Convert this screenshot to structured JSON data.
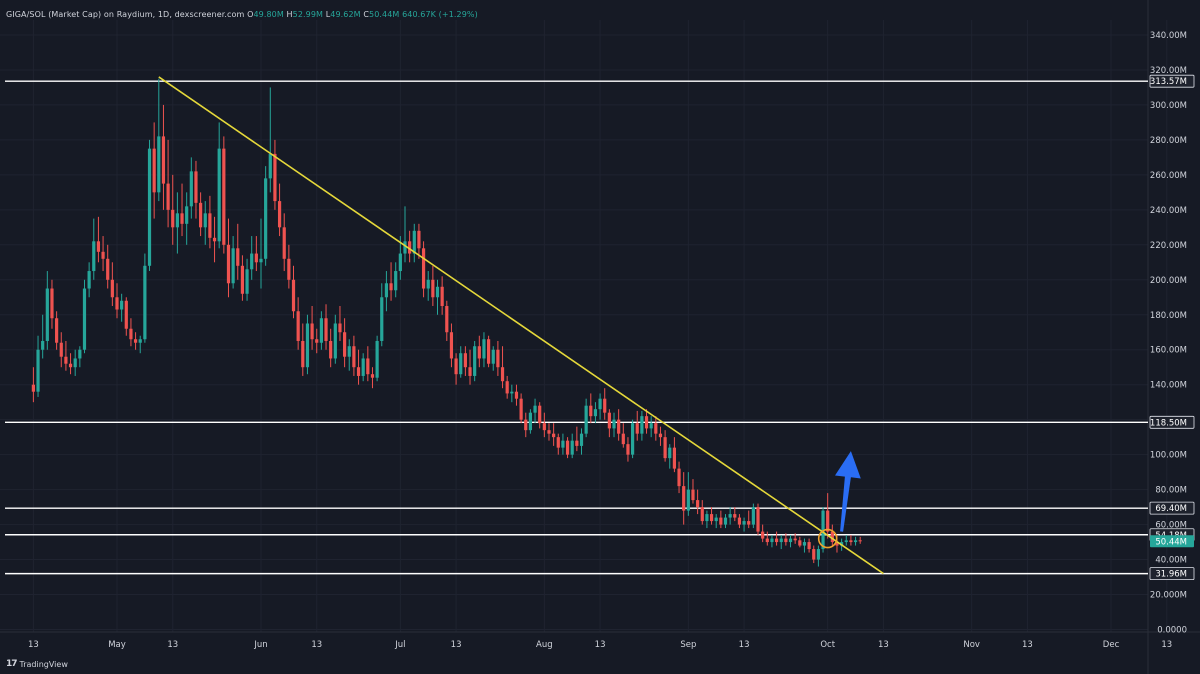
{
  "header": {
    "symbol": "GIGA/SOL (Market Cap) on Raydium, 1D, dexscreener.com",
    "open_label": "O",
    "open": "49.80M",
    "high_label": "H",
    "high": "52.99M",
    "low_label": "L",
    "low": "49.62M",
    "close_label": "C",
    "close": "50.44M",
    "change": "640.67K (+1.29%)"
  },
  "branding": {
    "name": "TradingView",
    "mark": "17"
  },
  "colors": {
    "background": "#161a25",
    "grid": "#1f2330",
    "up": "#26a69a",
    "down": "#ef5350",
    "trendline": "#e5d83a",
    "level_line": "#ffffff",
    "arrow": "#2a6df4",
    "circle": "#f0a22c",
    "axis_text": "#d1d4dc"
  },
  "chart_data": {
    "type": "candlestick",
    "title": "",
    "ylabel": "",
    "ylim": [
      0,
      350
    ],
    "y_unit": "M",
    "y_ticks": [
      "0.0000",
      "20.000M",
      "40.00M",
      "60.00M",
      "80.00M",
      "100.00M",
      "120.00M",
      "140.00M",
      "160.00M",
      "180.00M",
      "200.00M",
      "220.00M",
      "240.00M",
      "260.00M",
      "280.00M",
      "300.00M",
      "320.00M",
      "340.00M"
    ],
    "y_tick_values": [
      0,
      20,
      40,
      60,
      80,
      100,
      120,
      140,
      160,
      180,
      200,
      220,
      240,
      260,
      280,
      300,
      320,
      340
    ],
    "x_labels": [
      "13",
      "May",
      "13",
      "Jun",
      "13",
      "Jul",
      "13",
      "Aug",
      "13",
      "Sep",
      "13",
      "Oct",
      "13",
      "Nov",
      "13",
      "Dec",
      "13"
    ],
    "x_label_days": [
      -18,
      0,
      12,
      31,
      43,
      61,
      73,
      92,
      104,
      123,
      135,
      153,
      165,
      184,
      196,
      214,
      226
    ],
    "x_axis_origin": "May 1",
    "candles": [
      [
        -18,
        140,
        150,
        130,
        136
      ],
      [
        -17,
        136,
        168,
        133,
        160
      ],
      [
        -16,
        160,
        180,
        155,
        165
      ],
      [
        -15,
        165,
        205,
        160,
        195
      ],
      [
        -14,
        195,
        200,
        172,
        178
      ],
      [
        -13,
        178,
        182,
        160,
        164
      ],
      [
        -12,
        164,
        170,
        150,
        156
      ],
      [
        -11,
        156,
        165,
        148,
        152
      ],
      [
        -10,
        152,
        158,
        146,
        150
      ],
      [
        -9,
        150,
        160,
        145,
        155
      ],
      [
        -8,
        155,
        162,
        150,
        160
      ],
      [
        -7,
        160,
        200,
        158,
        195
      ],
      [
        -6,
        195,
        210,
        190,
        205
      ],
      [
        -5,
        205,
        235,
        200,
        222
      ],
      [
        -4,
        222,
        236,
        210,
        216
      ],
      [
        -3,
        216,
        225,
        205,
        212
      ],
      [
        -2,
        212,
        220,
        195,
        200
      ],
      [
        -1,
        200,
        210,
        185,
        190
      ],
      [
        0,
        190,
        198,
        178,
        183
      ],
      [
        1,
        183,
        192,
        176,
        188
      ],
      [
        2,
        188,
        190,
        168,
        172
      ],
      [
        3,
        172,
        178,
        162,
        166
      ],
      [
        4,
        166,
        170,
        160,
        164
      ],
      [
        5,
        164,
        168,
        158,
        166
      ],
      [
        6,
        166,
        215,
        164,
        208
      ],
      [
        7,
        208,
        280,
        205,
        275
      ],
      [
        8,
        275,
        290,
        235,
        250
      ],
      [
        9,
        250,
        315,
        245,
        282
      ],
      [
        10,
        282,
        300,
        240,
        255
      ],
      [
        11,
        255,
        280,
        230,
        240
      ],
      [
        12,
        240,
        260,
        220,
        230
      ],
      [
        13,
        230,
        250,
        215,
        238
      ],
      [
        14,
        238,
        255,
        225,
        232
      ],
      [
        15,
        232,
        250,
        220,
        242
      ],
      [
        16,
        242,
        270,
        235,
        262
      ],
      [
        17,
        262,
        268,
        235,
        244
      ],
      [
        18,
        244,
        250,
        225,
        230
      ],
      [
        19,
        230,
        245,
        220,
        238
      ],
      [
        20,
        238,
        248,
        218,
        224
      ],
      [
        21,
        224,
        236,
        210,
        222
      ],
      [
        22,
        222,
        290,
        218,
        275
      ],
      [
        23,
        275,
        282,
        215,
        220
      ],
      [
        24,
        220,
        235,
        190,
        198
      ],
      [
        25,
        198,
        225,
        195,
        218
      ],
      [
        26,
        218,
        232,
        200,
        208
      ],
      [
        27,
        208,
        214,
        188,
        192
      ],
      [
        28,
        192,
        212,
        188,
        206
      ],
      [
        29,
        206,
        225,
        200,
        215
      ],
      [
        30,
        215,
        225,
        205,
        210
      ],
      [
        31,
        210,
        235,
        195,
        212
      ],
      [
        32,
        212,
        265,
        208,
        258
      ],
      [
        33,
        258,
        310,
        250,
        272
      ],
      [
        34,
        272,
        280,
        240,
        245
      ],
      [
        35,
        245,
        255,
        225,
        230
      ],
      [
        36,
        230,
        238,
        205,
        212
      ],
      [
        37,
        212,
        220,
        195,
        200
      ],
      [
        38,
        200,
        208,
        178,
        182
      ],
      [
        39,
        182,
        190,
        160,
        165
      ],
      [
        40,
        165,
        175,
        145,
        150
      ],
      [
        41,
        150,
        180,
        146,
        175
      ],
      [
        42,
        175,
        185,
        160,
        166
      ],
      [
        43,
        166,
        172,
        158,
        164
      ],
      [
        44,
        164,
        182,
        160,
        178
      ],
      [
        45,
        178,
        186,
        160,
        165
      ],
      [
        46,
        165,
        172,
        150,
        155
      ],
      [
        47,
        155,
        180,
        152,
        175
      ],
      [
        48,
        175,
        185,
        165,
        170
      ],
      [
        49,
        170,
        178,
        150,
        156
      ],
      [
        50,
        156,
        166,
        148,
        162
      ],
      [
        51,
        162,
        168,
        145,
        150
      ],
      [
        52,
        150,
        160,
        140,
        145
      ],
      [
        53,
        145,
        158,
        142,
        155
      ],
      [
        54,
        155,
        162,
        142,
        146
      ],
      [
        55,
        146,
        150,
        138,
        144
      ],
      [
        56,
        144,
        168,
        142,
        165
      ],
      [
        57,
        165,
        198,
        162,
        190
      ],
      [
        58,
        190,
        205,
        182,
        198
      ],
      [
        59,
        198,
        210,
        188,
        194
      ],
      [
        60,
        194,
        210,
        190,
        205
      ],
      [
        61,
        205,
        225,
        200,
        215
      ],
      [
        62,
        215,
        242,
        210,
        222
      ],
      [
        63,
        222,
        228,
        210,
        215
      ],
      [
        64,
        215,
        232,
        210,
        228
      ],
      [
        65,
        228,
        232,
        212,
        218
      ],
      [
        66,
        218,
        222,
        190,
        195
      ],
      [
        67,
        195,
        205,
        188,
        200
      ],
      [
        68,
        200,
        208,
        185,
        190
      ],
      [
        69,
        190,
        200,
        180,
        196
      ],
      [
        70,
        196,
        202,
        180,
        185
      ],
      [
        71,
        185,
        188,
        165,
        170
      ],
      [
        72,
        170,
        175,
        150,
        155
      ],
      [
        73,
        155,
        158,
        140,
        146
      ],
      [
        74,
        146,
        162,
        144,
        158
      ],
      [
        75,
        158,
        162,
        145,
        150
      ],
      [
        76,
        150,
        160,
        140,
        145
      ],
      [
        77,
        145,
        165,
        142,
        162
      ],
      [
        78,
        162,
        168,
        150,
        155
      ],
      [
        79,
        155,
        170,
        150,
        166
      ],
      [
        80,
        166,
        168,
        150,
        152
      ],
      [
        81,
        152,
        162,
        148,
        160
      ],
      [
        82,
        160,
        165,
        145,
        150
      ],
      [
        83,
        150,
        162,
        138,
        142
      ],
      [
        84,
        142,
        145,
        132,
        135
      ],
      [
        85,
        135,
        140,
        130,
        136
      ],
      [
        86,
        136,
        140,
        128,
        132
      ],
      [
        87,
        132,
        135,
        118,
        120
      ],
      [
        88,
        120,
        124,
        110,
        114
      ],
      [
        89,
        114,
        126,
        112,
        124
      ],
      [
        90,
        124,
        132,
        118,
        128
      ],
      [
        91,
        128,
        130,
        115,
        118
      ],
      [
        92,
        118,
        124,
        110,
        114
      ],
      [
        93,
        114,
        118,
        108,
        112
      ],
      [
        94,
        112,
        118,
        105,
        110
      ],
      [
        95,
        110,
        112,
        100,
        104
      ],
      [
        96,
        104,
        112,
        100,
        108
      ],
      [
        97,
        108,
        110,
        98,
        100
      ],
      [
        98,
        100,
        112,
        98,
        108
      ],
      [
        99,
        108,
        116,
        102,
        105
      ],
      [
        100,
        105,
        115,
        100,
        112
      ],
      [
        101,
        112,
        132,
        110,
        128
      ],
      [
        102,
        128,
        135,
        118,
        122
      ],
      [
        103,
        122,
        130,
        118,
        126
      ],
      [
        104,
        126,
        135,
        120,
        132
      ],
      [
        105,
        132,
        138,
        120,
        124
      ],
      [
        106,
        124,
        126,
        110,
        115
      ],
      [
        107,
        115,
        124,
        110,
        120
      ],
      [
        108,
        120,
        126,
        108,
        112
      ],
      [
        109,
        112,
        118,
        104,
        106
      ],
      [
        110,
        106,
        110,
        96,
        100
      ],
      [
        111,
        100,
        120,
        98,
        118
      ],
      [
        112,
        118,
        125,
        108,
        112
      ],
      [
        113,
        112,
        125,
        108,
        122
      ],
      [
        114,
        122,
        126,
        112,
        115
      ],
      [
        115,
        115,
        122,
        110,
        118
      ],
      [
        116,
        118,
        122,
        108,
        112
      ],
      [
        117,
        112,
        116,
        105,
        110
      ],
      [
        118,
        110,
        114,
        96,
        98
      ],
      [
        119,
        98,
        106,
        92,
        104
      ],
      [
        120,
        104,
        110,
        90,
        92
      ],
      [
        121,
        92,
        96,
        78,
        82
      ],
      [
        122,
        82,
        90,
        60,
        68
      ],
      [
        123,
        68,
        90,
        65,
        80
      ],
      [
        124,
        80,
        86,
        72,
        74
      ],
      [
        125,
        74,
        80,
        66,
        70
      ],
      [
        126,
        70,
        74,
        60,
        62
      ],
      [
        127,
        62,
        68,
        58,
        66
      ],
      [
        128,
        66,
        70,
        60,
        62
      ],
      [
        129,
        62,
        66,
        58,
        64
      ],
      [
        130,
        64,
        68,
        58,
        60
      ],
      [
        131,
        60,
        66,
        58,
        64
      ],
      [
        132,
        64,
        70,
        60,
        66
      ],
      [
        133,
        66,
        70,
        62,
        64
      ],
      [
        134,
        64,
        66,
        58,
        60
      ],
      [
        135,
        60,
        64,
        56,
        62
      ],
      [
        136,
        62,
        68,
        58,
        60
      ],
      [
        137,
        60,
        72,
        58,
        70
      ],
      [
        138,
        70,
        72,
        54,
        56
      ],
      [
        139,
        56,
        60,
        50,
        52
      ],
      [
        140,
        52,
        56,
        48,
        50
      ],
      [
        141,
        50,
        54,
        47,
        52
      ],
      [
        142,
        52,
        56,
        48,
        50
      ],
      [
        143,
        50,
        54,
        46,
        52
      ],
      [
        144,
        52,
        55,
        48,
        50
      ],
      [
        145,
        50,
        54,
        47,
        52
      ],
      [
        146,
        52,
        55,
        49,
        51
      ],
      [
        147,
        51,
        53,
        47,
        48
      ],
      [
        148,
        48,
        52,
        44,
        50
      ],
      [
        149,
        50,
        52,
        44,
        46
      ],
      [
        150,
        46,
        48,
        38,
        40
      ],
      [
        151,
        40,
        48,
        36,
        46
      ],
      [
        152,
        46,
        70,
        44,
        68
      ],
      [
        153,
        68,
        78,
        52,
        56
      ],
      [
        154,
        56,
        60,
        48,
        50
      ],
      [
        155,
        50,
        54,
        44,
        48
      ],
      [
        156,
        48,
        52,
        45,
        50
      ],
      [
        157,
        50,
        54,
        48,
        51
      ],
      [
        158,
        51,
        54,
        48,
        50
      ],
      [
        159,
        50,
        53,
        48,
        51
      ],
      [
        160,
        51,
        53,
        49,
        50.44
      ]
    ],
    "horizontal_levels": [
      313.57,
      118.5,
      69.4,
      54.18,
      31.96
    ],
    "level_labels": [
      "313.57M",
      "118.50M",
      "69.40M",
      "54.18M",
      "31.96M"
    ],
    "current_price_label": "50.44M",
    "current_price": 50.44,
    "trendline": {
      "from": [
        9,
        316
      ],
      "to": [
        165,
        32
      ]
    },
    "breakout_circle": {
      "day": 153,
      "value": 52
    },
    "arrow_up": {
      "from": [
        156,
        56
      ],
      "to": [
        158,
        102
      ]
    }
  }
}
